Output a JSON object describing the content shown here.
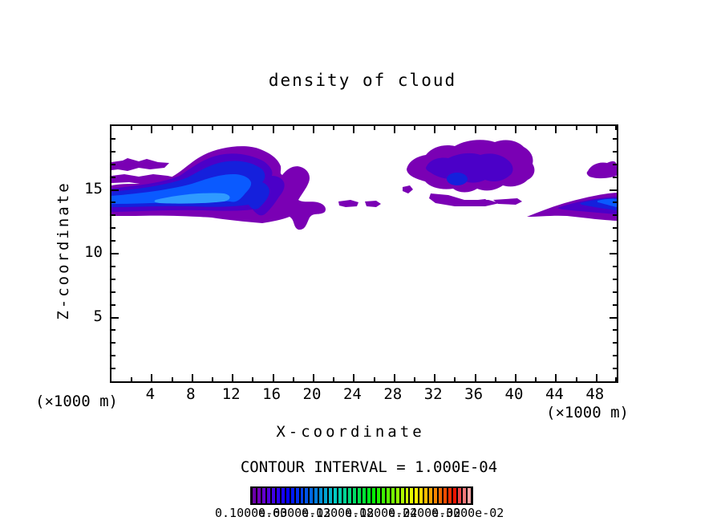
{
  "title": "density of cloud",
  "axes": {
    "x": {
      "label": "X-coordinate",
      "unit": "(×1000 m)",
      "range": [
        0,
        50
      ],
      "major_ticks": [
        4,
        8,
        12,
        16,
        20,
        24,
        28,
        32,
        36,
        40,
        44,
        48
      ],
      "minor_ticks": [
        2,
        6,
        10,
        14,
        18,
        22,
        26,
        30,
        34,
        38,
        42,
        46,
        50
      ]
    },
    "z": {
      "label": "Z-coordinate",
      "unit": "(×1000 m)",
      "range": [
        0,
        20
      ],
      "major_ticks": [
        5,
        10,
        15
      ],
      "minor_ticks": [
        1,
        2,
        3,
        4,
        6,
        7,
        8,
        9,
        11,
        12,
        13,
        14,
        16,
        17,
        18,
        19
      ]
    }
  },
  "contour_note": "CONTOUR INTERVAL = 1.000E-04",
  "contour_colors": {
    "level1": "#7a00b4",
    "level2": "#4b00c8",
    "level3": "#1520dc",
    "level4": "#0a5aff",
    "level5": "#2f9bff"
  },
  "colorbar": {
    "labels": [
      "0.1000e-03",
      "0.6000e-03",
      "0.1200e-02",
      "0.1800e-02",
      "0.2400e-02",
      "0.3000e-02"
    ],
    "colors": [
      "#6a00a8",
      "#7000bc",
      "#6400d0",
      "#5200dc",
      "#4000e6",
      "#2c00f0",
      "#1800fa",
      "#0400ff",
      "#0018fa",
      "#002cf4",
      "#0040ee",
      "#0054e8",
      "#0068e2",
      "#007cdc",
      "#0090d6",
      "#00a4d0",
      "#00b8ca",
      "#00ccc4",
      "#00d0ac",
      "#00d494",
      "#00d87c",
      "#00dc64",
      "#00e04c",
      "#00e434",
      "#00e81c",
      "#04ec04",
      "#20ee00",
      "#3cf000",
      "#58f200",
      "#74f400",
      "#90f600",
      "#acf800",
      "#c8fa00",
      "#e4fc00",
      "#fcf400",
      "#fad800",
      "#f8bc00",
      "#f6a000",
      "#f48400",
      "#f26800",
      "#f04c00",
      "#ee3000",
      "#ec1400",
      "#ee4444",
      "#f27878",
      "#f6a4a4"
    ]
  },
  "chart_data": {
    "type": "contour",
    "title": "density of cloud",
    "xlabel": "X-coordinate (×1000 m)",
    "ylabel": "Z-coordinate (×1000 m)",
    "xlim": [
      0,
      50
    ],
    "ylim": [
      0,
      20
    ],
    "contour_interval": 0.0001,
    "min_level": 0.0001,
    "grid": false,
    "regions": [
      {
        "name": "left cloud band",
        "x_range": [
          0,
          21
        ],
        "z_range": [
          12.6,
          17.8
        ],
        "peak_density_approx": 0.0012,
        "shape": "wave-shaped band entering at left edge near z=13-15.3 with bright blue core at z=14-15; crest rises to z=17.5 around x=10-13, curls down to z=12.5 near x=15-16, thin tail to x=21"
      },
      {
        "name": "detached streaks at left edge",
        "x_range": [
          0,
          7.5
        ],
        "z_range": [
          15.3,
          16.9
        ],
        "peak_density_approx": 0.0002,
        "shape": "two thin jagged purple streaks above main band"
      },
      {
        "name": "isolated fragments",
        "x_range": [
          22,
          27
        ],
        "z_range": [
          13.7,
          14.4
        ],
        "peak_density_approx": 0.00015,
        "shape": "small purple dashes right of left-cloud tail"
      },
      {
        "name": "middle cloud",
        "x_range": [
          28.5,
          42
        ],
        "z_range": [
          14.6,
          17.9
        ],
        "peak_density_approx": 0.0005,
        "shape": "rounded purple mass with darker blue-violet interior and small blue spot near x=33, z=15.6; thin purple streak below at z=14.8"
      },
      {
        "name": "right upper patch",
        "x_range": [
          47,
          50
        ],
        "z_range": [
          15.7,
          16.6
        ],
        "peak_density_approx": 0.0002,
        "shape": "small purple patch touching right edge"
      },
      {
        "name": "right wedge",
        "x_range": [
          41,
          50
        ],
        "z_range": [
          12.6,
          14.8
        ],
        "peak_density_approx": 0.001,
        "shape": "purple wedge entering from right edge with blue core thickening toward the edge"
      }
    ]
  }
}
